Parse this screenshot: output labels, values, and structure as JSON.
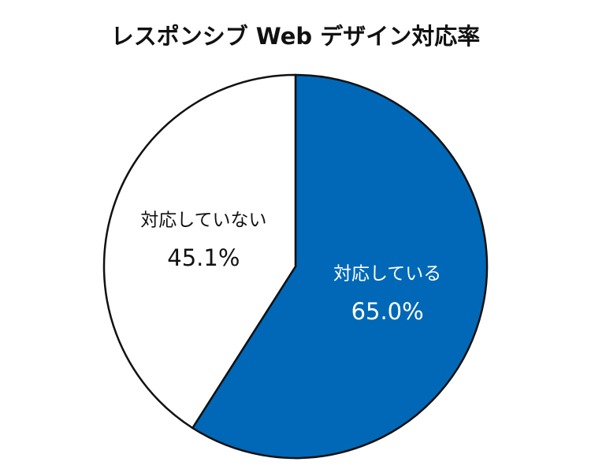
{
  "chart_data": {
    "type": "pie",
    "title": "レスポンシブ Web デザイン対応率",
    "categories": [
      "対応している",
      "対応していない"
    ],
    "values": [
      65.0,
      45.1
    ],
    "value_labels": [
      "65.0%",
      "45.1%"
    ],
    "colors": [
      "#0068b7",
      "#ffffff"
    ]
  }
}
